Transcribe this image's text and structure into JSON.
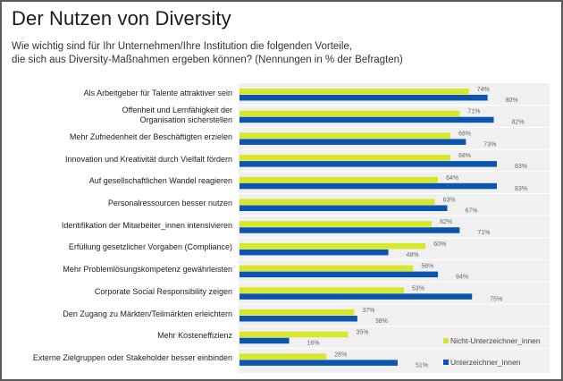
{
  "chart_data": {
    "type": "bar",
    "orientation": "horizontal",
    "title": "Der Nutzen von Diversity",
    "subtitle_lines": [
      "Wie wichtig sind für Ihr Unternehmen/Ihre Institution die folgenden Vorteile,",
      "die sich aus Diversity-Maßnahmen ergeben können? (Nennungen in % der Befragten)"
    ],
    "xlabel": "",
    "ylabel": "",
    "xlim": [
      0,
      100
    ],
    "grid": false,
    "legend_position": "bottom-right",
    "value_suffix": "%",
    "categories": [
      [
        "Als Arbeitgeber für Talente attraktiver sein"
      ],
      [
        "Offenheit und Lernfähigkeit der",
        "Organisation sicherstellen"
      ],
      [
        "Mehr Zufriedenheit der Beschäftigten erzielen"
      ],
      [
        "Innovation und Kreativität durch Vielfalt fördern"
      ],
      [
        "Auf gesellschaftlichen Wandel reagieren"
      ],
      [
        "Personalressourcen besser nutzen"
      ],
      [
        "Identifikation der Mitarbeiter_innen intensivieren"
      ],
      [
        "Erfüllung gesetzlicher Vorgaben (Compliance)"
      ],
      [
        "Mehr Problemlösungskompetenz gewährleisten"
      ],
      [
        "Corporate Social Responsibility zeigen"
      ],
      [
        "Den Zugang zu Märkten/Teilmärkten erleichtern"
      ],
      [
        "Mehr Kosteneffizienz"
      ],
      [
        "Externe Zielgruppen oder Stakeholder besser einbinden"
      ]
    ],
    "series": [
      {
        "name": "Nicht-Unterzeichner_innen",
        "color": "#d7e82a",
        "values": [
          74,
          71,
          68,
          68,
          64,
          63,
          62,
          60,
          56,
          53,
          37,
          35,
          28
        ]
      },
      {
        "name": "Unterzeichner_innen",
        "color": "#0b55ad",
        "values": [
          80,
          82,
          73,
          83,
          83,
          67,
          71,
          48,
          64,
          75,
          38,
          16,
          51
        ]
      }
    ]
  }
}
